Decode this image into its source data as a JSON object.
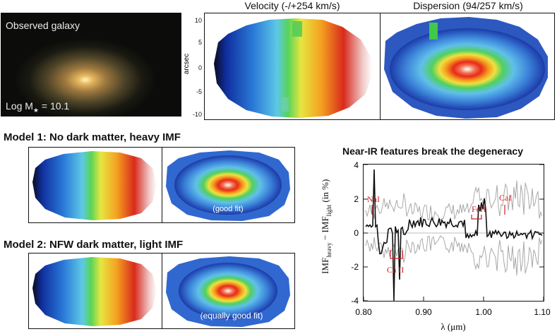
{
  "galaxy_panel": {
    "label": "Observed galaxy",
    "mass_label": "Log M",
    "mass_sub": "★",
    "mass_value": " = 10.1"
  },
  "observed": {
    "velocity_title": "Velocity (-/+254 km/s)",
    "dispersion_title": "Dispersion (94/257 km/s)",
    "y_axis_label": "arcsec",
    "y_ticks": [
      "10",
      "5",
      "0",
      "-5",
      "-10"
    ]
  },
  "model1": {
    "title": "Model 1: No dark matter, heavy IMF",
    "annotation": "(good fit)"
  },
  "model2": {
    "title": "Model 2: NFW dark matter, light IMF",
    "annotation": "(equally good fit)"
  },
  "spectrum": {
    "title": "Near-IR features break the degeneracy",
    "ylabel_main": "IMF",
    "ylabel_sub1": "heavy",
    "ylabel_mid": " − IMF",
    "ylabel_sub2": "light",
    "ylabel_end": " (in %)",
    "xlabel": "λ (μm)",
    "x_ticks": [
      "0.80",
      "0.90",
      "1.00",
      "1.10"
    ],
    "y_ticks": [
      "4",
      "2",
      "0",
      "-2",
      "-4"
    ],
    "features": [
      "NaI",
      "Ca II",
      "FeH",
      "CaI"
    ],
    "colors": {
      "signal": "#111111",
      "noise": "#a8a8a8",
      "feature": "#d02020"
    }
  }
}
